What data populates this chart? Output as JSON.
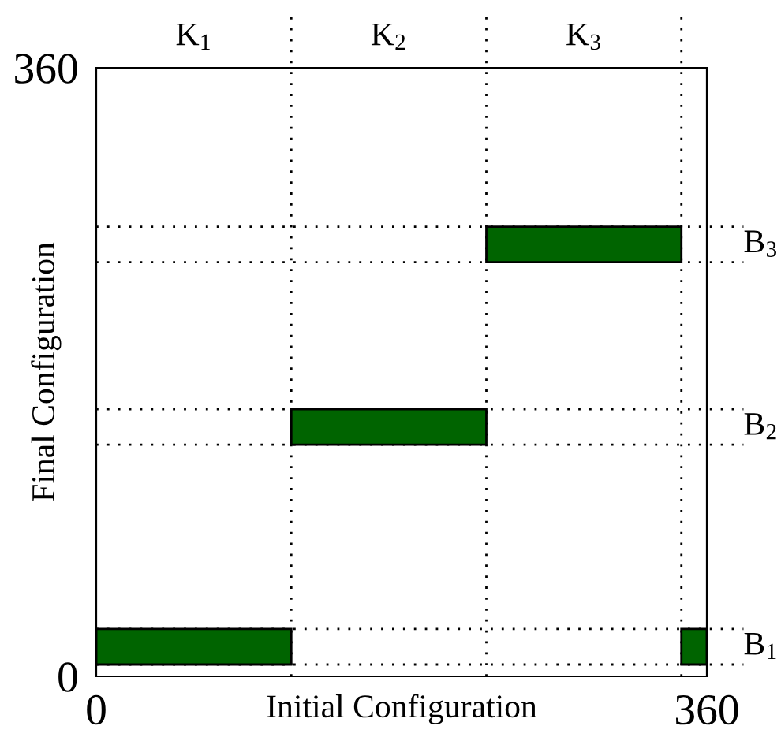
{
  "chart_data": {
    "type": "bar",
    "orientation": "horizontal",
    "xlabel": "Initial Configuration",
    "ylabel": "Final Configuration",
    "series": [
      {
        "color": "#006400",
        "x": [
          17.5,
          147.5,
          255.5
        ],
        "base": [
          0,
          115,
          230
        ],
        "values": [
          115,
          115,
          115
        ]
      },
      {
        "color": "#006400",
        "x": [
          17.5
        ],
        "base": [
          345
        ],
        "values": [
          15
        ]
      }
    ],
    "xlim": [
      0,
      360
    ],
    "ylim": [
      0,
      360
    ],
    "xticks": [
      0,
      360
    ],
    "yticks": [
      0,
      360
    ],
    "ref_lines": [
      {
        "axis": "x",
        "value": 115,
        "line_style": "dotted"
      },
      {
        "axis": "x",
        "value": 230,
        "line_style": "dotted"
      },
      {
        "axis": "x",
        "value": 345,
        "line_style": "dotted"
      },
      {
        "axis": "y",
        "value": 7,
        "line_style": "dotted"
      },
      {
        "axis": "y",
        "value": 28,
        "line_style": "dotted"
      },
      {
        "axis": "y",
        "value": 137,
        "line_style": "dotted"
      },
      {
        "axis": "y",
        "value": 158,
        "line_style": "dotted"
      },
      {
        "axis": "y",
        "value": 245,
        "line_style": "dotted"
      },
      {
        "axis": "y",
        "value": 266,
        "line_style": "dotted"
      }
    ],
    "annotations": [
      "K$_{1}$",
      "K$_{2}$",
      "K$_{3}$",
      "B$_{1}$",
      "B$_{2}$",
      "B$_{3}$"
    ],
    "grid": false,
    "legend": false
  }
}
